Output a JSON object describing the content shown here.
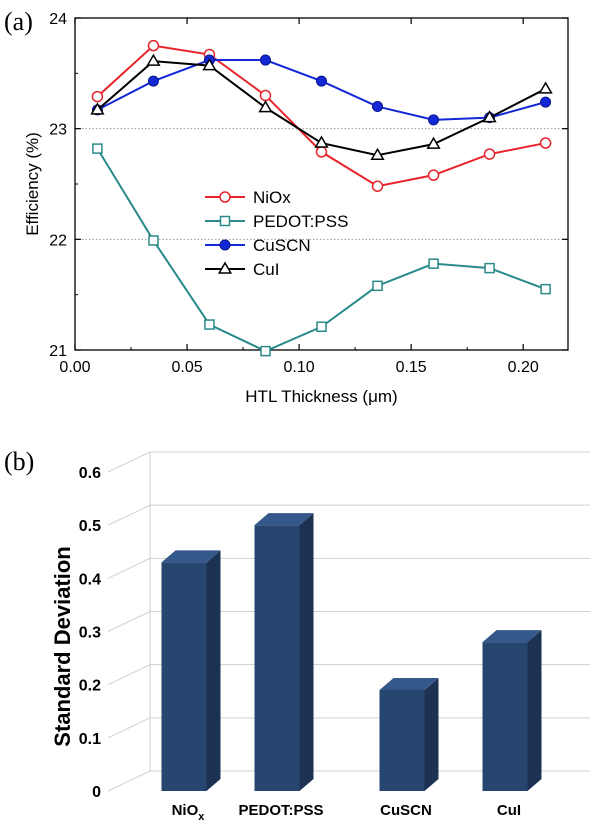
{
  "chart_data": [
    {
      "panel": "(a)",
      "type": "line",
      "xlabel": "HTL Thickness (μm)",
      "ylabel": "Efficiency (%)",
      "xlim": [
        0.0,
        0.22
      ],
      "ylim": [
        21,
        24
      ],
      "xticks": [
        "0.00",
        "0.05",
        "0.10",
        "0.15",
        "0.20"
      ],
      "yticks": [
        "21",
        "22",
        "23",
        "24"
      ],
      "grid": "dotted horizontal at 22 and 23",
      "legend_position": "center-left",
      "x": [
        0.01,
        0.035,
        0.06,
        0.085,
        0.11,
        0.135,
        0.16,
        0.185,
        0.21
      ],
      "series": [
        {
          "name": "NiOx",
          "color": "#e8232a",
          "marker": "open-circle",
          "values": [
            23.29,
            23.75,
            23.67,
            23.3,
            22.79,
            22.48,
            22.58,
            22.77,
            22.87
          ]
        },
        {
          "name": "PEDOT:PSS",
          "color": "#2a8a8a",
          "marker": "open-square",
          "values": [
            22.82,
            21.99,
            21.23,
            20.99,
            21.21,
            21.58,
            21.78,
            21.74,
            21.55
          ]
        },
        {
          "name": "CuSCN",
          "color": "#1428d8",
          "marker": "filled-circle",
          "values": [
            23.17,
            23.43,
            23.62,
            23.62,
            23.43,
            23.2,
            23.08,
            23.1,
            23.24
          ]
        },
        {
          "name": "CuI",
          "color": "#000000",
          "marker": "open-triangle",
          "values": [
            23.17,
            23.61,
            23.57,
            23.19,
            22.87,
            22.76,
            22.86,
            23.1,
            23.36
          ]
        }
      ]
    },
    {
      "panel": "(b)",
      "type": "bar",
      "ylabel": "Standard Deviation",
      "ylim": [
        0,
        0.6
      ],
      "yticks": [
        "0",
        "0.1",
        "0.2",
        "0.3",
        "0.4",
        "0.5",
        "0.6"
      ],
      "categories": [
        {
          "base": "NiO",
          "sub": "x"
        },
        {
          "base": "PEDOT:PSS",
          "sub": ""
        },
        {
          "base": "CuSCN",
          "sub": ""
        },
        {
          "base": "CuI",
          "sub": ""
        }
      ],
      "values": [
        0.43,
        0.5,
        0.19,
        0.28
      ],
      "bar_color": "#27466f",
      "grid": "horizontal lines"
    }
  ]
}
